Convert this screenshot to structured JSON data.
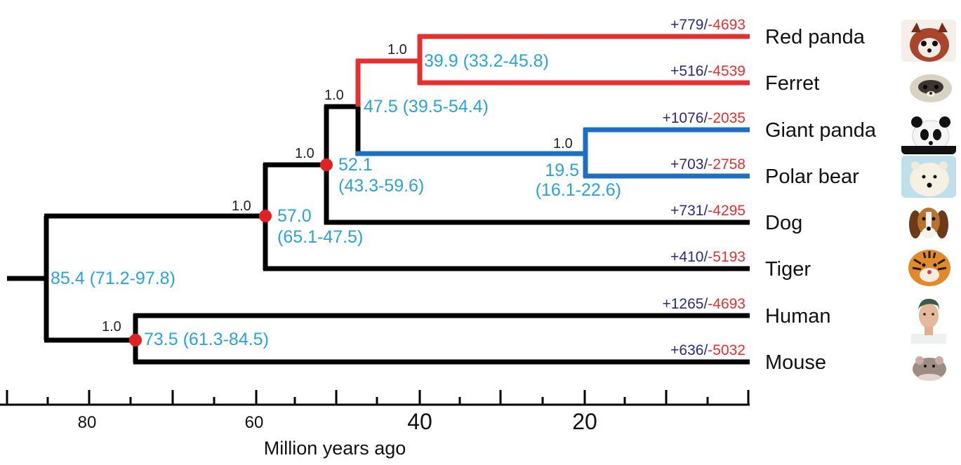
{
  "colors": {
    "black": "#000000",
    "red": "#e53030",
    "blue": "#1f6fc0",
    "cyan": "#2aa3da",
    "navy": "#2a2a80",
    "node": "#e02222"
  },
  "axis": {
    "label": "Million years ago",
    "ticks": [
      "80",
      "60",
      "40",
      "20"
    ]
  },
  "taxa": [
    {
      "name": "Red panda",
      "gain": "+779",
      "sep": "/",
      "loss": "-4693",
      "icon": "red-panda-photo"
    },
    {
      "name": "Ferret",
      "gain": "+516",
      "sep": "/",
      "loss": "-4539",
      "icon": "ferret-photo"
    },
    {
      "name": "Giant panda",
      "gain": "+1076",
      "sep": "/",
      "loss": "-2035",
      "icon": "giant-panda-photo"
    },
    {
      "name": "Polar bear",
      "gain": "+703",
      "sep": "/",
      "loss": "-2758",
      "icon": "polar-bear-photo"
    },
    {
      "name": "Dog",
      "gain": "+731",
      "sep": "/",
      "loss": "-4295",
      "icon": "dog-photo"
    },
    {
      "name": "Tiger",
      "gain": "+410",
      "sep": "/",
      "loss": "-5193",
      "icon": "tiger-photo"
    },
    {
      "name": "Human",
      "gain": "+1265",
      "sep": "/",
      "loss": "-4693",
      "icon": "human-photo"
    },
    {
      "name": "Mouse",
      "gain": "+636",
      "sep": "/",
      "loss": "-5032",
      "icon": "mouse-photo"
    }
  ],
  "nodes": {
    "root": {
      "age": "85.4 (71.2-97.8)"
    },
    "human_mouse": {
      "support": "1.0",
      "age": "73.5 (61.3-84.5)"
    },
    "carnivore_root": {
      "support": "1.0",
      "age": "57.0",
      "ci": "(65.1-47.5)"
    },
    "caniform": {
      "support": "1.0",
      "age": "52.1",
      "ci": "(43.3-59.6)"
    },
    "arctoid": {
      "support": "1.0",
      "age": "47.5 (39.5-54.4)"
    },
    "musteloid": {
      "support": "1.0",
      "age": "39.9 (33.2-45.8)"
    },
    "bears": {
      "support": "1.0",
      "age": "19.5",
      "ci": "(16.1-22.6)"
    }
  }
}
